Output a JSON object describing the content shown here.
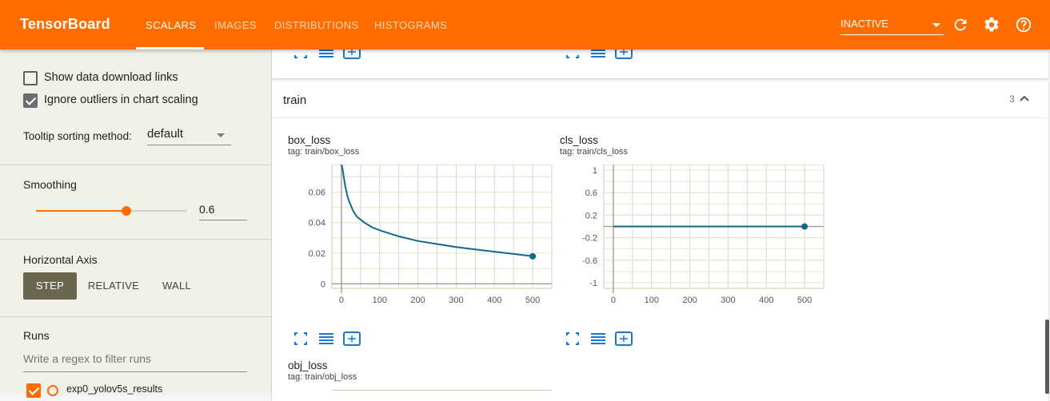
{
  "header": {
    "title": "TensorBoard",
    "tabs": [
      "SCALARS",
      "IMAGES",
      "DISTRIBUTIONS",
      "HISTOGRAMS"
    ],
    "active_tab": "SCALARS",
    "status": "INACTIVE",
    "icons": [
      "refresh-icon",
      "settings-icon",
      "help-icon"
    ],
    "color": "#ff6d00"
  },
  "sidebar": {
    "show_download_label": "Show data download links",
    "show_download_checked": false,
    "ignore_outliers_label": "Ignore outliers in chart scaling",
    "ignore_outliers_checked": true,
    "tooltip_label": "Tooltip sorting method:",
    "tooltip_value": "default",
    "smoothing_label": "Smoothing",
    "smoothing_value": "0.6",
    "smoothing_fraction": 0.6,
    "axis_label": "Horizontal Axis",
    "axis_options": [
      "STEP",
      "RELATIVE",
      "WALL"
    ],
    "axis_selected": "STEP",
    "runs_label": "Runs",
    "runs_filter_placeholder": "Write a regex to filter runs",
    "runs": [
      {
        "name": "exp0_yolov5s_results",
        "checked": true,
        "color": "#ff6d00"
      }
    ]
  },
  "main": {
    "group": {
      "name": "train",
      "count": "3"
    },
    "charts": [
      {
        "title": "box_loss",
        "tag": "tag: train/box_loss"
      },
      {
        "title": "cls_loss",
        "tag": "tag: train/cls_loss"
      },
      {
        "title": "obj_loss",
        "tag": "tag: train/obj_loss"
      }
    ]
  },
  "chart_data": [
    {
      "type": "line",
      "title": "box_loss",
      "series": [
        {
          "values": [
            [
              0,
              0.085
            ],
            [
              3,
              0.075
            ],
            [
              6,
              0.07
            ],
            [
              10,
              0.064
            ],
            [
              15,
              0.058
            ],
            [
              20,
              0.054
            ],
            [
              30,
              0.048
            ],
            [
              40,
              0.044
            ],
            [
              60,
              0.04
            ],
            [
              80,
              0.037
            ],
            [
              100,
              0.035
            ],
            [
              150,
              0.031
            ],
            [
              200,
              0.028
            ],
            [
              250,
              0.026
            ],
            [
              300,
              0.024
            ],
            [
              350,
              0.0225
            ],
            [
              400,
              0.021
            ],
            [
              450,
              0.0195
            ],
            [
              500,
              0.018
            ]
          ]
        }
      ],
      "xlim": [
        -25,
        550
      ],
      "ylim": [
        -0.003,
        0.078
      ],
      "xticks": [
        "0",
        "100",
        "200",
        "300",
        "400",
        "500"
      ],
      "yticks": [
        "0",
        "0.02",
        "0.04",
        "0.06"
      ],
      "color": "#0f6a8b"
    },
    {
      "type": "line",
      "title": "cls_loss",
      "series": [
        {
          "values": [
            [
              0,
              0
            ],
            [
              100,
              0
            ],
            [
              200,
              0
            ],
            [
              300,
              0
            ],
            [
              400,
              0
            ],
            [
              500,
              0
            ]
          ]
        }
      ],
      "xlim": [
        -25,
        550
      ],
      "ylim": [
        -1.1,
        1.1
      ],
      "xticks": [
        "0",
        "100",
        "200",
        "300",
        "400",
        "500"
      ],
      "yticks": [
        "1",
        "0.6",
        "0.2",
        "-0.2",
        "-0.6",
        "-1"
      ],
      "color": "#0f6a8b"
    }
  ]
}
